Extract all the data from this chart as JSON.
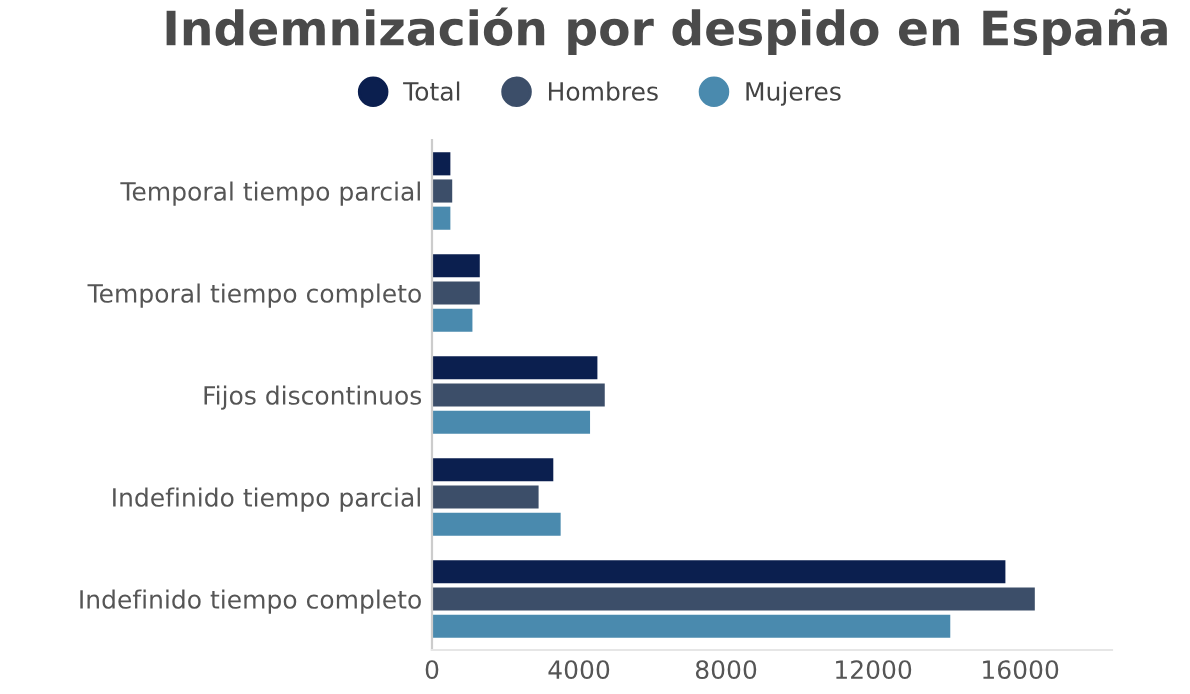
{
  "chart_data": {
    "type": "bar",
    "orientation": "horizontal",
    "title": "Indemnización por despido en España",
    "categories": [
      "Temporal tiempo parcial",
      "Temporal tiempo completo",
      "Fijos discontinuos",
      "Indefinido tiempo parcial",
      "Indefinido tiempo completo"
    ],
    "series": [
      {
        "name": "Total",
        "color": "#0b1f4f",
        "values": [
          500,
          1300,
          4500,
          3300,
          15600
        ]
      },
      {
        "name": "Hombres",
        "color": "#3c4e69",
        "values": [
          550,
          1300,
          4700,
          2900,
          16400
        ]
      },
      {
        "name": "Mujeres",
        "color": "#4a8aae",
        "values": [
          500,
          1100,
          4300,
          3500,
          14100
        ]
      }
    ],
    "xlim": [
      0,
      18500
    ],
    "xticks": [
      0,
      4000,
      8000,
      12000,
      16000
    ],
    "grid": false,
    "legend": "top"
  }
}
